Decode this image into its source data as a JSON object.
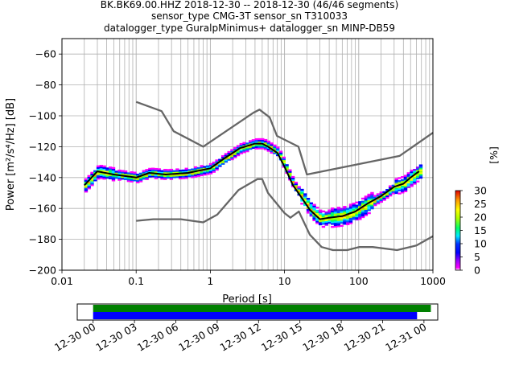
{
  "header": {
    "line1": "BK.BK69.00.HHZ   2018-12-30 -- 2018-12-30  (46/46 segments)",
    "line2": "sensor_type CMG-3T sensor_sn T310033",
    "line3": "datalogger_type GuralpMinimus+ datalogger_sn MINP-DB59"
  },
  "chart_data": [
    {
      "type": "heatmap",
      "title": "",
      "xlabel": "Period [s]",
      "ylabel": "Power [m²/s⁴/Hz] [dB]",
      "x_scale": "log",
      "xlim": [
        0.01,
        1000
      ],
      "ylim": [
        -200,
        -50
      ],
      "x_ticks": [
        "0.01",
        "0.1",
        "1",
        "10",
        "100",
        "1000"
      ],
      "y_ticks": [
        "−200",
        "−180",
        "−160",
        "−140",
        "−120",
        "−100",
        "−80",
        "−60"
      ],
      "grid": true,
      "colorbar": {
        "label": "[%]",
        "range": [
          0,
          30
        ],
        "ticks": [
          "0",
          "5",
          "10",
          "15",
          "20",
          "25",
          "30"
        ],
        "colormap": "pqlx"
      },
      "mode_curve": {
        "period": [
          0.02,
          0.03,
          0.05,
          0.1,
          0.15,
          0.25,
          0.5,
          1.0,
          1.5,
          2.5,
          4.0,
          5.0,
          6.0,
          8.0,
          10.0,
          13.0,
          17.0,
          22.0,
          30.0,
          40.0,
          60.0,
          90.0,
          130.0,
          200.0,
          300.0,
          400.0,
          500.0,
          650.0
        ],
        "power": [
          -145,
          -136,
          -138,
          -140,
          -137,
          -138,
          -137,
          -134,
          -128,
          -121,
          -118,
          -118,
          -120,
          -124,
          -133,
          -145,
          -153,
          -161,
          -167,
          -166,
          -165,
          -162,
          -157,
          -152,
          -146,
          -144,
          -140,
          -136
        ]
      },
      "nhnm": {
        "period": [
          0.1,
          0.22,
          0.32,
          0.8,
          3.8,
          4.6,
          6.3,
          7.9,
          15.4,
          20.0,
          354.8,
          1000.0
        ],
        "power": [
          -91,
          -97,
          -110,
          -120,
          -98,
          -96,
          -101,
          -113,
          -120,
          -138,
          -126,
          -111
        ]
      },
      "nlnm": {
        "period": [
          0.1,
          0.17,
          0.4,
          0.8,
          1.24,
          2.4,
          4.3,
          5.0,
          6.0,
          10.0,
          12.0,
          15.6,
          21.9,
          31.6,
          45.0,
          70.0,
          101.0,
          154.0,
          328.0,
          600.0,
          1000.0
        ],
        "power": [
          -168,
          -167,
          -167,
          -169,
          -164,
          -148,
          -141,
          -141,
          -150,
          -163,
          -166,
          -162,
          -177,
          -185,
          -187,
          -187,
          -185,
          -185,
          -187,
          -184,
          -178
        ]
      }
    },
    {
      "type": "bar",
      "title": "",
      "xlabel": "",
      "ylabel": "",
      "x_ticks": [
        "12-30 00",
        "12-30 03",
        "12-30 06",
        "12-30 09",
        "12-30 12",
        "12-30 15",
        "12-30 18",
        "12-30 21",
        "12-31 00"
      ],
      "xlim_hours": [
        -1.15,
        25.0
      ],
      "series": [
        {
          "color": "#008000",
          "start_hour": 0.0,
          "end_hour": 24.5
        },
        {
          "color": "#0000ff",
          "start_hour": 0.0,
          "end_hour": 23.5
        }
      ]
    }
  ]
}
